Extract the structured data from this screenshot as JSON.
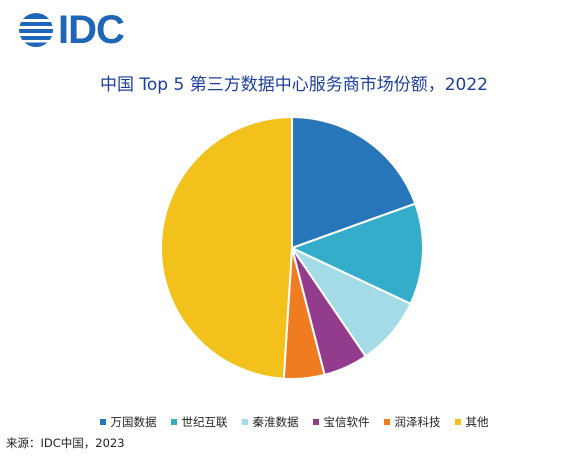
{
  "logo": {
    "text": "IDC"
  },
  "source": "来源：IDC中国，2023",
  "chart_data": {
    "type": "pie",
    "title": "中国 Top 5 第三方数据中心服务商市场份额，2022",
    "slices": [
      {
        "label": "万国数据",
        "value": 19.5,
        "color": "#2776ba"
      },
      {
        "label": "世纪互联",
        "value": 12.5,
        "color": "#33adc9"
      },
      {
        "label": "秦淮数据",
        "value": 8.5,
        "color": "#a3dbe6"
      },
      {
        "label": "宝信软件",
        "value": 5.5,
        "color": "#933b8c"
      },
      {
        "label": "润泽科技",
        "value": 5.0,
        "color": "#f07c22"
      },
      {
        "label": "其他",
        "value": 49.0,
        "color": "#f2c11c"
      }
    ],
    "legend_position": "bottom"
  }
}
